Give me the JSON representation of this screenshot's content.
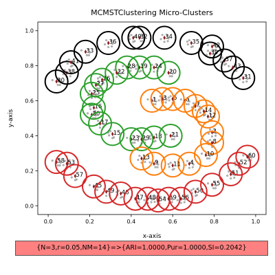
{
  "chart_data": {
    "type": "scatter",
    "title": "MCMSTClustering Micro-Clusters",
    "xlabel": "x-axis",
    "ylabel": "y-axis",
    "xlim": [
      -0.05,
      1.05
    ],
    "ylim": [
      -0.05,
      1.05
    ],
    "xticks": [
      "0.0",
      "0.2",
      "0.4",
      "0.6",
      "0.8",
      "1.0"
    ],
    "yticks": [
      "0.0",
      "0.2",
      "0.4",
      "0.6",
      "0.8",
      "1.0"
    ],
    "grid": false,
    "series": [
      {
        "color": "#000000",
        "micro_clusters": [
          {
            "id": "30",
            "x": 0.04,
            "y": 0.71
          },
          {
            "id": "38",
            "x": 0.09,
            "y": 0.76
          },
          {
            "id": "41",
            "x": 0.11,
            "y": 0.82
          },
          {
            "id": "33",
            "x": 0.18,
            "y": 0.88
          },
          {
            "id": "36",
            "x": 0.29,
            "y": 0.93
          },
          {
            "id": "40",
            "x": 0.41,
            "y": 0.96
          },
          {
            "id": "32",
            "x": 0.44,
            "y": 0.96
          },
          {
            "id": "34",
            "x": 0.56,
            "y": 0.96
          },
          {
            "id": "35",
            "x": 0.69,
            "y": 0.93
          },
          {
            "id": "42",
            "x": 0.79,
            "y": 0.91
          },
          {
            "id": "39",
            "x": 0.78,
            "y": 0.87
          },
          {
            "id": "37",
            "x": 0.85,
            "y": 0.83
          },
          {
            "id": "43",
            "x": 0.89,
            "y": 0.79
          },
          {
            "id": "31",
            "x": 0.94,
            "y": 0.73
          }
        ]
      },
      {
        "color": "#2ca02c",
        "micro_clusters": [
          {
            "id": "20",
            "x": 0.58,
            "y": 0.76
          },
          {
            "id": "24",
            "x": 0.51,
            "y": 0.79
          },
          {
            "id": "19",
            "x": 0.44,
            "y": 0.79
          },
          {
            "id": "28",
            "x": 0.38,
            "y": 0.79
          },
          {
            "id": "22",
            "x": 0.33,
            "y": 0.76
          },
          {
            "id": "26",
            "x": 0.26,
            "y": 0.72
          },
          {
            "id": "27",
            "x": 0.23,
            "y": 0.69
          },
          {
            "id": "25",
            "x": 0.21,
            "y": 0.64
          },
          {
            "id": "16",
            "x": 0.22,
            "y": 0.56
          },
          {
            "id": "30",
            "x": 0.21,
            "y": 0.52
          },
          {
            "id": "17",
            "x": 0.25,
            "y": 0.47
          },
          {
            "id": "15",
            "x": 0.31,
            "y": 0.41
          },
          {
            "id": "23",
            "x": 0.4,
            "y": 0.38
          },
          {
            "id": "29",
            "x": 0.45,
            "y": 0.38
          },
          {
            "id": "18",
            "x": 0.51,
            "y": 0.39
          },
          {
            "id": "21",
            "x": 0.59,
            "y": 0.4
          }
        ]
      },
      {
        "color": "#ff7f0e",
        "micro_clusters": [
          {
            "id": "1",
            "x": 0.5,
            "y": 0.6
          },
          {
            "id": "3",
            "x": 0.55,
            "y": 0.61
          },
          {
            "id": "5",
            "x": 0.6,
            "y": 0.61
          },
          {
            "id": "6",
            "x": 0.66,
            "y": 0.6
          },
          {
            "id": "7",
            "x": 0.71,
            "y": 0.57
          },
          {
            "id": "14",
            "x": 0.75,
            "y": 0.54
          },
          {
            "id": "12",
            "x": 0.77,
            "y": 0.51
          },
          {
            "id": "2",
            "x": 0.79,
            "y": 0.42
          },
          {
            "id": "8",
            "x": 0.79,
            "y": 0.36
          },
          {
            "id": "10",
            "x": 0.76,
            "y": 0.29
          },
          {
            "id": "4",
            "x": 0.68,
            "y": 0.24
          },
          {
            "id": "11",
            "x": 0.6,
            "y": 0.23
          },
          {
            "id": "9",
            "x": 0.51,
            "y": 0.24
          },
          {
            "id": "13",
            "x": 0.45,
            "y": 0.27
          }
        ]
      },
      {
        "color": "#d62728",
        "micro_clusters": [
          {
            "id": "58",
            "x": 0.04,
            "y": 0.25
          },
          {
            "id": "53",
            "x": 0.09,
            "y": 0.24
          },
          {
            "id": "57",
            "x": 0.13,
            "y": 0.17
          },
          {
            "id": "45",
            "x": 0.22,
            "y": 0.11
          },
          {
            "id": "49",
            "x": 0.28,
            "y": 0.08
          },
          {
            "id": "46",
            "x": 0.35,
            "y": 0.07
          },
          {
            "id": "47",
            "x": 0.42,
            "y": 0.04
          },
          {
            "id": "48",
            "x": 0.48,
            "y": 0.04
          },
          {
            "id": "54",
            "x": 0.53,
            "y": 0.03
          },
          {
            "id": "59",
            "x": 0.58,
            "y": 0.04
          },
          {
            "id": "56",
            "x": 0.64,
            "y": 0.04
          },
          {
            "id": "50",
            "x": 0.71,
            "y": 0.08
          },
          {
            "id": "55",
            "x": 0.79,
            "y": 0.12
          },
          {
            "id": "51",
            "x": 0.88,
            "y": 0.18
          },
          {
            "id": "52",
            "x": 0.92,
            "y": 0.24
          },
          {
            "id": "60",
            "x": 0.96,
            "y": 0.28
          }
        ]
      }
    ],
    "status_text": "{N=3,r=0.05,NM=14}=>{ARI=1.0000,Pur=1.0000,SI=0.2042}"
  }
}
